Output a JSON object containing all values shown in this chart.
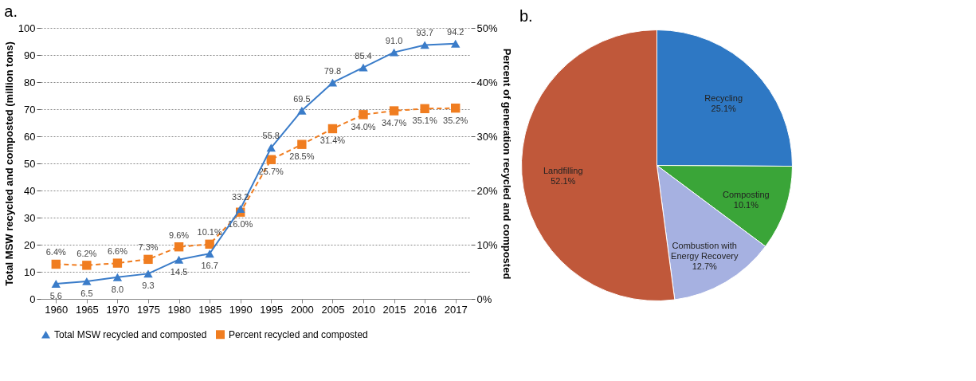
{
  "chart_data": [
    {
      "type": "line",
      "title": "a.",
      "xlabel": null,
      "ylabel": "Total MSW recycled and composted (million tons)",
      "y2label": "Percent of generation recycled and composted",
      "categories": [
        "1960",
        "1965",
        "1970",
        "1975",
        "1980",
        "1985",
        "1990",
        "1995",
        "2000",
        "2005",
        "2010",
        "2015",
        "2016",
        "2017"
      ],
      "series": [
        {
          "name": "Total MSW recycled and composted",
          "color": "#3a7cc9",
          "marker": "triangle",
          "line_style": "solid",
          "values": [
            5.6,
            6.5,
            8.0,
            9.3,
            14.5,
            16.7,
            33.2,
            55.8,
            69.5,
            79.8,
            85.4,
            91.0,
            93.7,
            94.2
          ],
          "value_labels": [
            "5.6",
            "6.5",
            "8.0",
            "9.3",
            "14.5",
            "16.7",
            "33.2",
            "55.8",
            "69.5",
            "79.8",
            "85.4",
            "91.0",
            "93.7",
            "94.2"
          ]
        },
        {
          "name": "Percent recycled and composted",
          "color": "#f07d20",
          "marker": "square",
          "line_style": "dashed",
          "axis": "y2",
          "values": [
            6.4,
            6.2,
            6.6,
            7.3,
            9.6,
            10.1,
            16.0,
            25.7,
            28.5,
            31.4,
            34.0,
            34.7,
            35.1,
            35.2
          ],
          "value_labels": [
            "6.4%",
            "6.2%",
            "6.6%",
            "7.3%",
            "9.6%",
            "10.1%",
            "16.0%",
            "25.7%",
            "28.5%",
            "31.4%",
            "34.0%",
            "34.7%",
            "35.1%",
            "35.2%"
          ]
        }
      ],
      "ylim": [
        0,
        100
      ],
      "yticks": [
        0,
        10,
        20,
        30,
        40,
        50,
        60,
        70,
        80,
        90,
        100
      ],
      "y2lim": [
        0,
        50
      ],
      "y2ticks": [
        {
          "value": 0,
          "label": "0%"
        },
        {
          "value": 10,
          "label": "10%"
        },
        {
          "value": 20,
          "label": "20%"
        },
        {
          "value": 30,
          "label": "30%"
        },
        {
          "value": 40,
          "label": "40%"
        },
        {
          "value": 50,
          "label": "50%"
        }
      ],
      "grid": "y",
      "legend": "bottom"
    },
    {
      "type": "pie",
      "title": "b.",
      "categories": [
        "Recycling",
        "Composting",
        "Combustion with Energy Recovery",
        "Landfilling"
      ],
      "values": [
        25.1,
        10.1,
        12.7,
        52.1
      ],
      "colors": [
        "#2e78c4",
        "#3aa538",
        "#a6b1e1",
        "#c0583a"
      ],
      "value_labels": [
        "25.1%",
        "10.1%",
        "12.7%",
        "52.1%"
      ],
      "legend": false
    }
  ]
}
